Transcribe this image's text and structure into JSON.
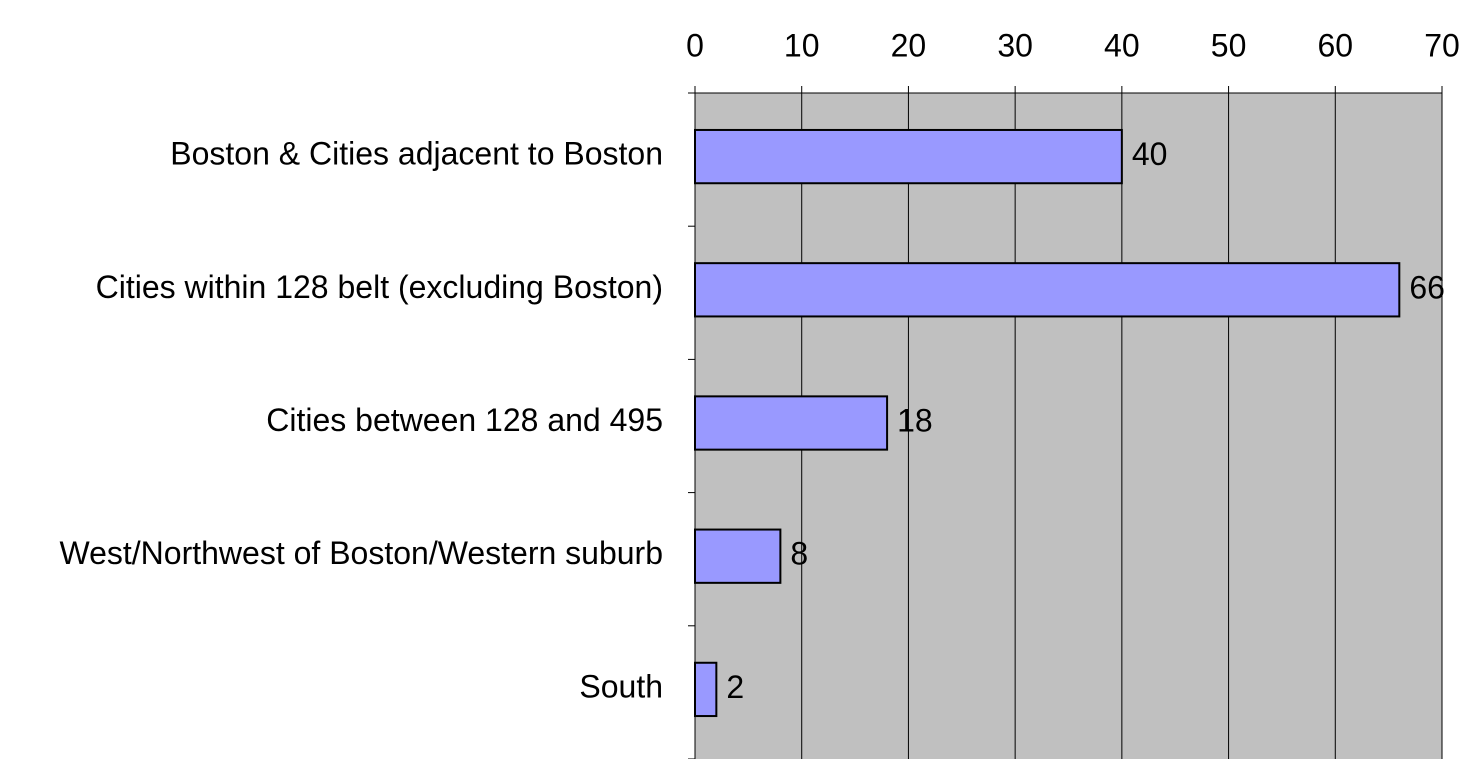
{
  "chart_data": {
    "type": "bar",
    "orientation": "horizontal",
    "categories": [
      "Boston & Cities adjacent to Boston",
      "Cities within 128 belt (excluding Boston)",
      "Cities between 128 and 495",
      "West/Northwest of Boston/Western suburb",
      "South"
    ],
    "values": [
      40,
      66,
      18,
      8,
      2
    ],
    "color": "#9999ff",
    "xlim": [
      0,
      70
    ],
    "xticks": [
      0,
      10,
      20,
      30,
      40,
      50,
      60,
      70
    ],
    "grid": true
  }
}
